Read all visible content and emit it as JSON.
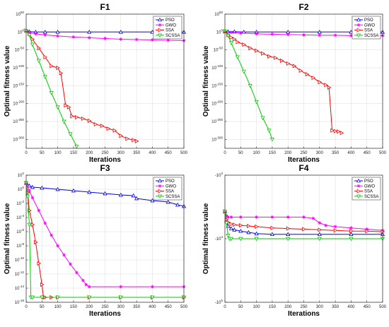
{
  "chart_data": [
    {
      "type": "line",
      "title": "F1",
      "xlabel": "Iterations",
      "ylabel": "Optimal fitness value",
      "yscale": "log",
      "xlim": [
        0,
        500
      ],
      "ylim_exp": [
        -325,
        50
      ],
      "xticks": [
        0,
        50,
        100,
        150,
        200,
        250,
        300,
        350,
        400,
        450,
        500
      ],
      "xtick_labels": [
        "0",
        "50",
        "100",
        "150",
        "200",
        "250",
        "300",
        "350",
        "400",
        "450",
        "500"
      ],
      "yticks_exp": [
        50,
        0,
        -50,
        -100,
        -150,
        -200,
        -250,
        -300
      ],
      "ytick_labels": [
        "10^50",
        "10^0",
        "10^-50",
        "10^-100",
        "10^-150",
        "10^-200",
        "10^-250",
        "10^-300"
      ],
      "grid": true,
      "legend": "top-right",
      "series": [
        {
          "name": "PSO",
          "color": "#0000ff",
          "marker": "triangle-up",
          "x": [
            0,
            10,
            30,
            60,
            100,
            200,
            300,
            400,
            500
          ],
          "y_exp": [
            4,
            1,
            0,
            0,
            0,
            0,
            0,
            0,
            0
          ]
        },
        {
          "name": "GWO",
          "color": "#ff00ff",
          "marker": "star",
          "x": [
            0,
            10,
            30,
            60,
            100,
            150,
            200,
            250,
            300,
            350,
            400,
            450,
            500
          ],
          "y_exp": [
            4,
            -2,
            -5,
            -8,
            -11,
            -14,
            -16,
            -18,
            -20,
            -21,
            -22,
            -23,
            -24
          ]
        },
        {
          "name": "SSA",
          "color": "#ff0000",
          "marker": "triangle-right",
          "x": [
            0,
            10,
            20,
            40,
            60,
            80,
            100,
            110,
            125,
            135,
            145,
            160,
            180,
            200,
            220,
            240,
            260,
            280,
            300,
            320,
            340,
            350
          ],
          "y_exp": [
            4,
            -5,
            -20,
            -45,
            -70,
            -95,
            -100,
            -115,
            -205,
            -210,
            -235,
            -238,
            -242,
            -248,
            -258,
            -262,
            -270,
            -275,
            -290,
            -298,
            -302,
            -305
          ]
        },
        {
          "name": "SCSSA",
          "color": "#00cc00",
          "marker": "triangle-down",
          "x": [
            0,
            10,
            20,
            40,
            60,
            80,
            100,
            120,
            140,
            160
          ],
          "y_exp": [
            4,
            -8,
            -35,
            -80,
            -125,
            -170,
            -210,
            -250,
            -285,
            -320
          ]
        }
      ]
    },
    {
      "type": "line",
      "title": "F2",
      "xlabel": "Iterations",
      "ylabel": "Optimal fitness value",
      "yscale": "log",
      "xlim": [
        0,
        500
      ],
      "ylim_exp": [
        -325,
        50
      ],
      "xticks": [
        0,
        50,
        100,
        150,
        200,
        250,
        300,
        350,
        400,
        450,
        500
      ],
      "xtick_labels": [
        "0",
        "50",
        "100",
        "150",
        "200",
        "250",
        "300",
        "350",
        "400",
        "450",
        "500"
      ],
      "yticks_exp": [
        50,
        0,
        -50,
        -100,
        -150,
        -200,
        -250,
        -300
      ],
      "ytick_labels": [
        "10^50",
        "10^0",
        "10^-50",
        "10^-100",
        "10^-150",
        "10^-200",
        "10^-250",
        "10^-300"
      ],
      "grid": true,
      "legend": "top-right",
      "series": [
        {
          "name": "PSO",
          "color": "#0000ff",
          "marker": "triangle-up",
          "x": [
            0,
            10,
            30,
            60,
            100,
            200,
            300,
            400,
            500
          ],
          "y_exp": [
            2,
            1,
            1,
            0,
            0,
            0,
            0,
            0,
            0
          ]
        },
        {
          "name": "GWO",
          "color": "#ff00ff",
          "marker": "star",
          "x": [
            0,
            20,
            50,
            100,
            150,
            200,
            250,
            300,
            350,
            400,
            450,
            500
          ],
          "y_exp": [
            2,
            -1,
            -3,
            -5,
            -6,
            -7,
            -8,
            -9,
            -9,
            -10,
            -10,
            -10
          ]
        },
        {
          "name": "SSA",
          "color": "#ff0000",
          "marker": "triangle-right",
          "x": [
            0,
            10,
            20,
            30,
            40,
            60,
            80,
            100,
            120,
            140,
            160,
            180,
            200,
            220,
            240,
            260,
            280,
            300,
            320,
            330,
            340,
            350,
            360,
            370
          ],
          "y_exp": [
            2,
            -8,
            -15,
            -20,
            -28,
            -35,
            -45,
            -52,
            -60,
            -68,
            -72,
            -80,
            -88,
            -95,
            -108,
            -118,
            -128,
            -140,
            -148,
            -155,
            -275,
            -277,
            -278,
            -282
          ]
        },
        {
          "name": "SCSSA",
          "color": "#00cc00",
          "marker": "triangle-down",
          "x": [
            0,
            10,
            20,
            40,
            60,
            80,
            100,
            120,
            140,
            150
          ],
          "y_exp": [
            2,
            -10,
            -30,
            -70,
            -110,
            -150,
            -195,
            -240,
            -275,
            -300
          ]
        }
      ]
    },
    {
      "type": "line",
      "title": "F3",
      "xlabel": "Iterations",
      "ylabel": "Optimal fitness value",
      "yscale": "log",
      "xlim": [
        0,
        500
      ],
      "ylim_exp": [
        -16,
        2
      ],
      "xticks": [
        0,
        50,
        100,
        150,
        200,
        250,
        300,
        350,
        400,
        450,
        500
      ],
      "xtick_labels": [
        "0",
        "50",
        "100",
        "150",
        "200",
        "250",
        "300",
        "350",
        "400",
        "450",
        "500"
      ],
      "yticks_exp": [
        2,
        0,
        -2,
        -4,
        -6,
        -8,
        -10,
        -12,
        -14,
        -16
      ],
      "ytick_labels": [
        "10^2",
        "10^0",
        "10^-2",
        "10^-4",
        "10^-6",
        "10^-8",
        "10^-10",
        "10^-12",
        "10^-14",
        "10^-16"
      ],
      "grid": true,
      "legend": "top-right",
      "series": [
        {
          "name": "PSO",
          "color": "#0000ff",
          "marker": "triangle-up",
          "x": [
            0,
            10,
            20,
            50,
            100,
            150,
            200,
            250,
            300,
            340,
            350,
            400,
            450,
            480,
            500
          ],
          "y_exp": [
            0.9,
            0.5,
            0.3,
            0.2,
            0,
            -0.2,
            -0.4,
            -0.6,
            -0.8,
            -0.9,
            -1.3,
            -1.6,
            -1.8,
            -2.2,
            -2.4
          ]
        },
        {
          "name": "GWO",
          "color": "#ff00ff",
          "marker": "star",
          "x": [
            0,
            10,
            20,
            40,
            60,
            80,
            100,
            120,
            140,
            160,
            180,
            190,
            200,
            300,
            400,
            500
          ],
          "y_exp": [
            0.9,
            -0.2,
            -1.2,
            -3.0,
            -4.8,
            -6.5,
            -8.0,
            -9.3,
            -10.6,
            -11.8,
            -12.9,
            -13.5,
            -13.8,
            -13.8,
            -13.8,
            -13.8
          ]
        },
        {
          "name": "SSA",
          "color": "#ff0000",
          "marker": "triangle-right",
          "x": [
            0,
            5,
            10,
            20,
            30,
            40,
            50,
            55,
            60,
            80,
            100,
            200,
            300,
            400,
            500
          ],
          "y_exp": [
            0.9,
            -0.5,
            -3.0,
            -5.0,
            -7.5,
            -10.5,
            -13.5,
            -15.3,
            -15.3,
            -15.3,
            -15.3,
            -15.3,
            -15.3,
            -15.3,
            -15.3
          ]
        },
        {
          "name": "SCSSA",
          "color": "#00cc00",
          "marker": "triangle-down",
          "x": [
            0,
            5,
            10,
            15,
            20,
            50,
            100,
            200,
            300,
            400,
            500
          ],
          "y_exp": [
            0.9,
            -1.0,
            -5.0,
            -15.3,
            -15.3,
            -15.3,
            -15.3,
            -15.3,
            -15.3,
            -15.3,
            -15.3
          ]
        }
      ]
    },
    {
      "type": "line",
      "title": "F4",
      "xlabel": "Iterations",
      "ylabel": "Optimal fitness value",
      "yscale": "log",
      "y_values_negative": true,
      "xlim": [
        0,
        500
      ],
      "ylim_exp": [
        3,
        5
      ],
      "xticks": [
        0,
        50,
        100,
        150,
        200,
        250,
        300,
        350,
        400,
        450,
        500
      ],
      "xtick_labels": [
        "0",
        "50",
        "100",
        "150",
        "200",
        "250",
        "300",
        "350",
        "400",
        "450",
        "500"
      ],
      "yticks_exp": [
        3,
        4,
        5
      ],
      "ytick_labels": [
        "-10^3",
        "-10^4",
        "-10^5"
      ],
      "grid": true,
      "legend": "top-right",
      "series": [
        {
          "name": "PSO",
          "color": "#0000ff",
          "marker": "triangle-up",
          "x": [
            0,
            5,
            10,
            20,
            30,
            50,
            75,
            100,
            150,
            200,
            300,
            400,
            500
          ],
          "y_exp": [
            3.57,
            3.72,
            3.8,
            3.84,
            3.86,
            3.88,
            3.9,
            3.92,
            3.93,
            3.93,
            3.93,
            3.93,
            3.93
          ]
        },
        {
          "name": "GWO",
          "color": "#ff00ff",
          "marker": "star",
          "x": [
            0,
            5,
            10,
            20,
            50,
            100,
            150,
            200,
            250,
            280,
            300,
            320,
            350,
            400,
            450,
            500
          ],
          "y_exp": [
            3.57,
            3.64,
            3.66,
            3.66,
            3.66,
            3.66,
            3.66,
            3.66,
            3.66,
            3.68,
            3.75,
            3.79,
            3.81,
            3.83,
            3.85,
            3.87
          ]
        },
        {
          "name": "SSA",
          "color": "#ff0000",
          "marker": "triangle-right",
          "x": [
            0,
            5,
            10,
            20,
            30,
            50,
            75,
            100,
            150,
            200,
            250,
            300,
            350,
            400,
            450,
            500
          ],
          "y_exp": [
            3.57,
            3.7,
            3.74,
            3.77,
            3.78,
            3.79,
            3.8,
            3.81,
            3.83,
            3.84,
            3.85,
            3.86,
            3.87,
            3.88,
            3.88,
            3.89
          ]
        },
        {
          "name": "SCSSA",
          "color": "#00cc00",
          "marker": "triangle-down",
          "x": [
            0,
            5,
            10,
            15,
            20,
            50,
            100,
            200,
            300,
            400,
            500
          ],
          "y_exp": [
            3.57,
            3.75,
            3.95,
            4.0,
            4.0,
            4.0,
            4.0,
            4.0,
            4.0,
            4.0,
            4.0
          ]
        }
      ]
    }
  ]
}
